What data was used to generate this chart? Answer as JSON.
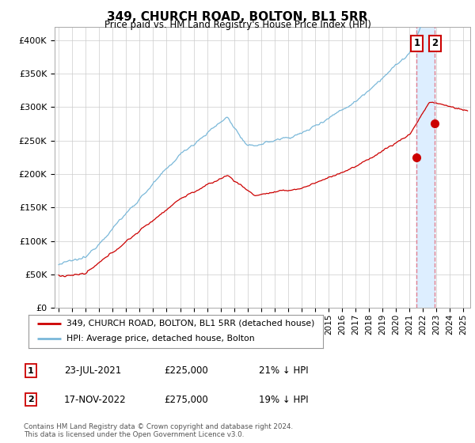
{
  "title": "349, CHURCH ROAD, BOLTON, BL1 5RR",
  "subtitle": "Price paid vs. HM Land Registry's House Price Index (HPI)",
  "ylabel_ticks": [
    "£0",
    "£50K",
    "£100K",
    "£150K",
    "£200K",
    "£250K",
    "£300K",
    "£350K",
    "£400K"
  ],
  "ylim": [
    0,
    420000
  ],
  "xlim_start": 1994.7,
  "xlim_end": 2025.5,
  "hpi_color": "#7ab8d9",
  "price_color": "#cc0000",
  "dashed_color": "#e08090",
  "fill_color": "#ddeeff",
  "marker1_x": 2021.54,
  "marker1_y": 225000,
  "marker2_x": 2022.87,
  "marker2_y": 275000,
  "legend_line1": "349, CHURCH ROAD, BOLTON, BL1 5RR (detached house)",
  "legend_line2": "HPI: Average price, detached house, Bolton",
  "table_row1": [
    "1",
    "23-JUL-2021",
    "£225,000",
    "21% ↓ HPI"
  ],
  "table_row2": [
    "2",
    "17-NOV-2022",
    "£275,000",
    "19% ↓ HPI"
  ],
  "footnote": "Contains HM Land Registry data © Crown copyright and database right 2024.\nThis data is licensed under the Open Government Licence v3.0.",
  "background_color": "#ffffff",
  "grid_color": "#cccccc"
}
